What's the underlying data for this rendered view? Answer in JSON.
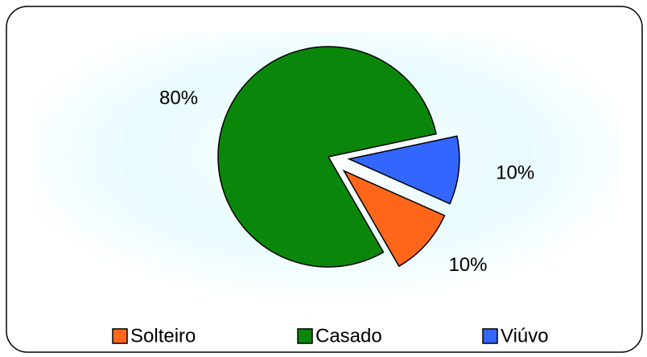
{
  "chart_data": {
    "type": "pie",
    "categories": [
      "Solteiro",
      "Casado",
      "Viúvo"
    ],
    "values": [
      10,
      80,
      10
    ],
    "value_labels": [
      "10%",
      "80%",
      "10%"
    ],
    "colors": [
      "#ff6619",
      "#0a870a",
      "#3366ff"
    ],
    "exploded": [
      true,
      false,
      true
    ],
    "legend": "bottom"
  }
}
